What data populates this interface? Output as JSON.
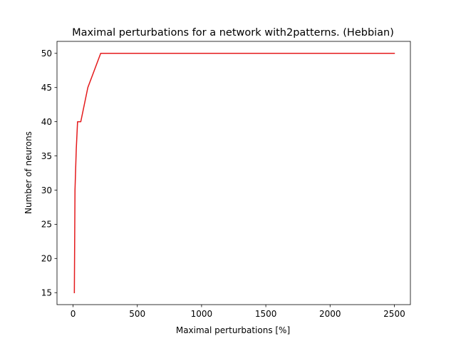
{
  "chart_data": {
    "type": "line",
    "title": "Maximal perturbations for a network with2patterns. (Hebbian)",
    "xlabel": "Maximal perturbations [%]",
    "ylabel": "Number of neurons",
    "xlim": [
      -125,
      2625
    ],
    "ylim": [
      13.25,
      51.75
    ],
    "grid": false,
    "legend": "none",
    "xticks": [
      0,
      500,
      1000,
      1500,
      2000,
      2500
    ],
    "xtick_labels": [
      "0",
      "500",
      "1000",
      "1500",
      "2000",
      "2500"
    ],
    "yticks": [
      15,
      20,
      25,
      30,
      35,
      40,
      45,
      50
    ],
    "ytick_labels": [
      "15",
      "20",
      "25",
      "30",
      "35",
      "40",
      "45",
      "50"
    ],
    "series": [
      {
        "color": "#e41a1c",
        "x": [
          10,
          15,
          20,
          25,
          30,
          35,
          60,
          115,
          215,
          2500
        ],
        "y": [
          15,
          30,
          33,
          36,
          38,
          40,
          40,
          45,
          50,
          50
        ]
      }
    ]
  }
}
